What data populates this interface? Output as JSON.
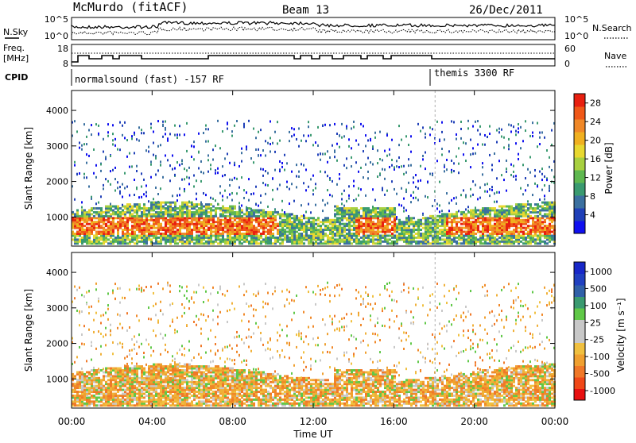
{
  "header": {
    "station": "McMurdo (fitACF)",
    "beam": "Beam 13",
    "date": "26/Dec/2011"
  },
  "status_panels": {
    "nsky_label": "N.Sky",
    "nsky_ticks": [
      "10^5",
      "10^0"
    ],
    "nsearch_label": "N.Search",
    "nsearch_ticks": [
      "10^5",
      "10^0"
    ],
    "freq_label_1": "Freq.",
    "freq_label_2": "[MHz]",
    "freq_ticks": [
      "18",
      "8"
    ],
    "nave_label": "Nave",
    "nave_ticks": [
      "60",
      "0"
    ],
    "cpid_label": "CPID",
    "cpid_modes": [
      {
        "name": "normalsound (fast) -157 RF",
        "start_hour": 0,
        "end_hour": 18.05
      },
      {
        "name": "themis 3300 RF",
        "start_hour": 18.05,
        "end_hour": 24
      }
    ]
  },
  "chart_data": [
    {
      "type": "heatmap",
      "title": "",
      "xlabel": "Time UT",
      "ylabel": "Slant Range [km]",
      "x_ticks": [
        "00:00",
        "04:00",
        "08:00",
        "12:00",
        "16:00",
        "20:00",
        "00:00"
      ],
      "xlim_hours": [
        0,
        24
      ],
      "y_ticks": [
        "1000",
        "2000",
        "3000",
        "4000"
      ],
      "ylim": [
        180,
        4560
      ],
      "colorbar": {
        "label": "Power [dB]",
        "ticks": [
          "4",
          "8",
          "12",
          "16",
          "20",
          "24",
          "28"
        ],
        "range": [
          0,
          30
        ],
        "colors": [
          "#1010f0",
          "#2040b8",
          "#3b70a0",
          "#3a9a70",
          "#5fb850",
          "#a8d040",
          "#e8d830",
          "#f0b020",
          "#f08828",
          "#f05818",
          "#e82010"
        ]
      }
    },
    {
      "type": "heatmap",
      "title": "",
      "xlabel": "Time UT",
      "ylabel": "Slant Range [km]",
      "x_ticks": [
        "00:00",
        "04:00",
        "08:00",
        "12:00",
        "16:00",
        "20:00",
        "00:00"
      ],
      "xlim_hours": [
        0,
        24
      ],
      "y_ticks": [
        "1000",
        "2000",
        "3000",
        "4000"
      ],
      "ylim": [
        180,
        4560
      ],
      "colorbar": {
        "label": "Velocity [m s⁻¹]",
        "ticks": [
          "1000",
          "500",
          "100",
          "25",
          "-25",
          "-100",
          "-500",
          "-1000"
        ],
        "range": [
          -1000,
          1000
        ],
        "colors": [
          "#e81010",
          "#f04818",
          "#f07828",
          "#f0a030",
          "#f0c040",
          "#c8c8c8",
          "#c8c8c8",
          "#60c848",
          "#3a9a70",
          "#3060a8",
          "#2040c0",
          "#1828c8"
        ]
      }
    }
  ]
}
